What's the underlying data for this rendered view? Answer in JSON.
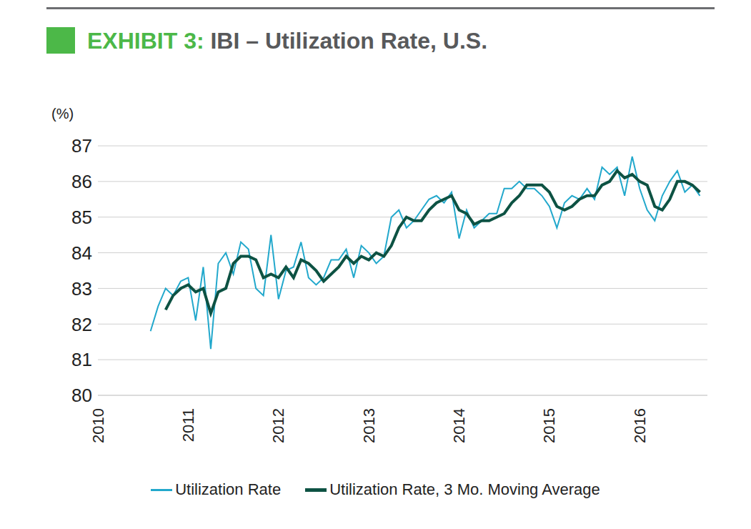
{
  "chart_data": {
    "type": "line",
    "title": "EXHIBIT 3: IBI – Utilization Rate, U.S.",
    "y_label": "(%)",
    "x": [
      2010.583,
      2010.667,
      2010.75,
      2010.833,
      2010.917,
      2011.0,
      2011.083,
      2011.167,
      2011.25,
      2011.333,
      2011.417,
      2011.5,
      2011.583,
      2011.667,
      2011.75,
      2011.833,
      2011.917,
      2012.0,
      2012.083,
      2012.167,
      2012.25,
      2012.333,
      2012.417,
      2012.5,
      2012.583,
      2012.667,
      2012.75,
      2012.833,
      2012.917,
      2013.0,
      2013.083,
      2013.167,
      2013.25,
      2013.333,
      2013.417,
      2013.5,
      2013.583,
      2013.667,
      2013.75,
      2013.833,
      2013.917,
      2014.0,
      2014.083,
      2014.167,
      2014.25,
      2014.333,
      2014.417,
      2014.5,
      2014.583,
      2014.667,
      2014.75,
      2014.833,
      2014.917,
      2015.0,
      2015.083,
      2015.167,
      2015.25,
      2015.333,
      2015.417,
      2015.5,
      2015.583,
      2015.667,
      2015.75,
      2015.833,
      2015.917,
      2016.0,
      2016.083,
      2016.167,
      2016.25,
      2016.333,
      2016.417,
      2016.5,
      2016.583,
      2016.667
    ],
    "series": [
      {
        "name": "Utilization Rate",
        "color": "#22a8cc",
        "values": [
          81.8,
          82.5,
          83.0,
          82.8,
          83.2,
          83.3,
          82.1,
          83.6,
          81.3,
          83.7,
          84.0,
          83.4,
          84.3,
          84.1,
          83.0,
          82.8,
          84.5,
          82.7,
          83.5,
          83.6,
          84.3,
          83.3,
          83.1,
          83.3,
          83.8,
          83.8,
          84.1,
          83.3,
          84.2,
          84.0,
          83.7,
          83.9,
          85.0,
          85.2,
          84.7,
          84.9,
          85.2,
          85.5,
          85.6,
          85.4,
          85.7,
          84.4,
          85.2,
          84.7,
          84.9,
          85.1,
          85.1,
          85.8,
          85.8,
          86.0,
          85.8,
          85.8,
          85.6,
          85.3,
          84.7,
          85.4,
          85.6,
          85.5,
          85.8,
          85.5,
          86.4,
          86.2,
          86.4,
          85.6,
          86.7,
          85.8,
          85.2,
          84.9,
          85.6,
          86.0,
          86.3,
          85.7,
          85.9,
          85.6
        ]
      },
      {
        "name": "Utilization Rate, 3 Mo. Moving Average",
        "color": "#0d5243",
        "values": [
          null,
          null,
          82.4,
          82.8,
          83.0,
          83.1,
          82.9,
          83.0,
          82.3,
          82.9,
          83.0,
          83.7,
          83.9,
          83.9,
          83.8,
          83.3,
          83.4,
          83.3,
          83.6,
          83.3,
          83.8,
          83.7,
          83.5,
          83.2,
          83.4,
          83.6,
          83.9,
          83.7,
          83.9,
          83.8,
          84.0,
          83.9,
          84.2,
          84.7,
          85.0,
          84.9,
          84.9,
          85.2,
          85.4,
          85.5,
          85.6,
          85.2,
          85.1,
          84.8,
          84.9,
          84.9,
          85.0,
          85.1,
          85.4,
          85.6,
          85.9,
          85.9,
          85.9,
          85.7,
          85.3,
          85.2,
          85.3,
          85.5,
          85.6,
          85.6,
          85.9,
          86.0,
          86.3,
          86.1,
          86.2,
          86.0,
          85.9,
          85.3,
          85.2,
          85.5,
          86.0,
          86.0,
          85.9,
          85.7
        ]
      }
    ],
    "xlim": [
      2010,
      2016.75
    ],
    "xticks": [
      2010,
      2011,
      2012,
      2013,
      2014,
      2015,
      2016
    ],
    "ylim": [
      80,
      87
    ],
    "yticks": [
      80,
      81,
      82,
      83,
      84,
      85,
      86,
      87
    ],
    "grid": true,
    "legend": "bottom"
  }
}
